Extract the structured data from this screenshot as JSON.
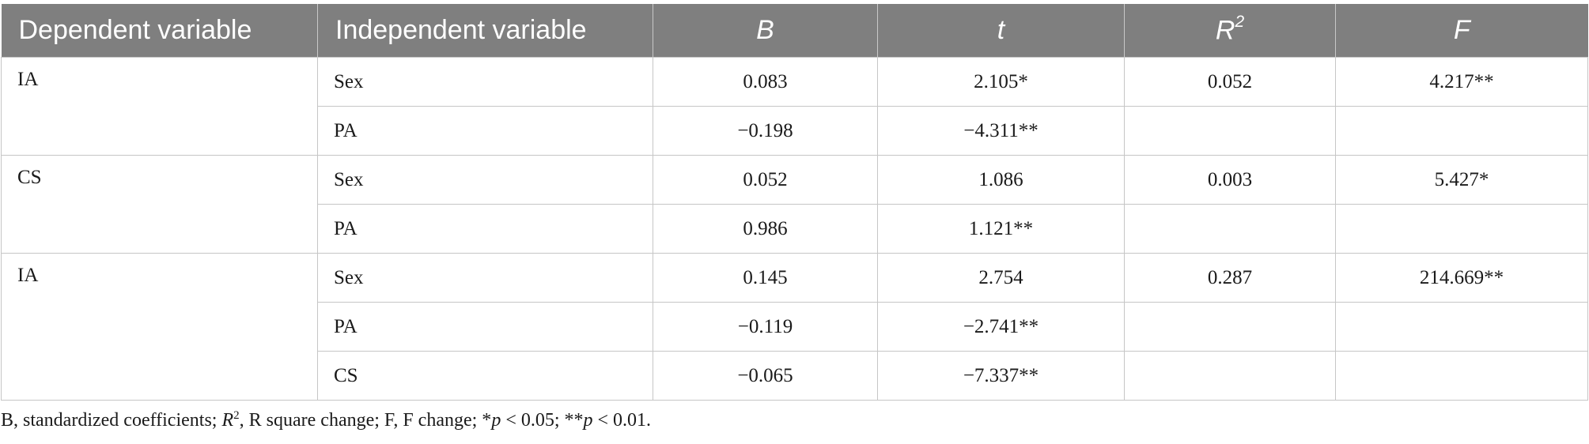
{
  "table": {
    "headers": {
      "dependent": "Dependent variable",
      "independent": "Independent variable",
      "b": "B",
      "t": "t",
      "r_base": "R",
      "r_sup": "2",
      "f": "F"
    },
    "groups": [
      {
        "dependent": "IA",
        "rows": [
          {
            "independent": "Sex",
            "b": "0.083",
            "t": "2.105*",
            "r2": "0.052",
            "f": "4.217**"
          },
          {
            "independent": "PA",
            "b": "−0.198",
            "t": "−4.311**",
            "r2": "",
            "f": ""
          }
        ]
      },
      {
        "dependent": "CS",
        "rows": [
          {
            "independent": "Sex",
            "b": "0.052",
            "t": "1.086",
            "r2": "0.003",
            "f": "5.427*"
          },
          {
            "independent": "PA",
            "b": "0.986",
            "t": "1.121**",
            "r2": "",
            "f": ""
          }
        ]
      },
      {
        "dependent": "IA",
        "rows": [
          {
            "independent": "Sex",
            "b": "0.145",
            "t": "2.754",
            "r2": "0.287",
            "f": "214.669**"
          },
          {
            "independent": "PA",
            "b": "−0.119",
            "t": "−2.741**",
            "r2": "",
            "f": ""
          },
          {
            "independent": "CS",
            "b": "−0.065",
            "t": "−7.337**",
            "r2": "",
            "f": ""
          }
        ]
      }
    ]
  },
  "footnote": {
    "part1": "B, standardized coefficients; ",
    "r_base": "R",
    "r_sup": "2",
    "part2": ", R square change; F, F change; *",
    "p1": "p",
    "part3": " < 0.05; **",
    "p2": "p",
    "part4": " < 0.01."
  }
}
